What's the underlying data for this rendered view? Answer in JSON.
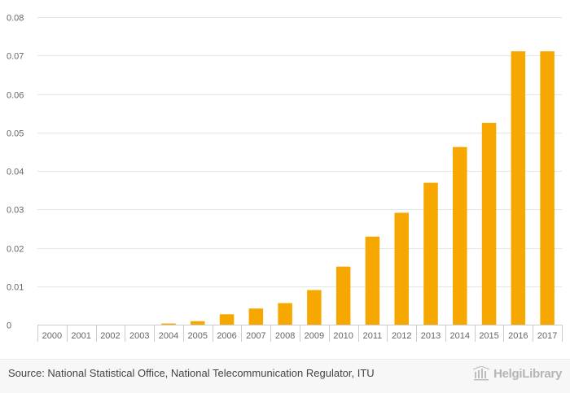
{
  "chart_data": {
    "type": "bar",
    "title": "",
    "xlabel": "",
    "ylabel": "",
    "categories": [
      "2000",
      "2001",
      "2002",
      "2003",
      "2004",
      "2005",
      "2006",
      "2007",
      "2008",
      "2009",
      "2010",
      "2011",
      "2012",
      "2013",
      "2014",
      "2015",
      "2016",
      "2017"
    ],
    "values": [
      0,
      0,
      0,
      0,
      0.0003,
      0.0009,
      0.0027,
      0.0042,
      0.0056,
      0.009,
      0.0151,
      0.0229,
      0.0291,
      0.0369,
      0.0462,
      0.0525,
      0.0711,
      0.0711
    ],
    "ylim": [
      0,
      0.08
    ],
    "yticks": [
      "0",
      "0.01",
      "0.02",
      "0.03",
      "0.04",
      "0.05",
      "0.06",
      "0.07",
      "0.08"
    ],
    "ytick_values": [
      0,
      0.01,
      0.02,
      0.03,
      0.04,
      0.05,
      0.06,
      0.07,
      0.08
    ],
    "grid": true,
    "bar_color": "#f7a800"
  },
  "footer": {
    "source": "Source: National Statistical Office, National Telecommunication Regulator, ITU",
    "logo_text": "HelgiLibrary"
  }
}
